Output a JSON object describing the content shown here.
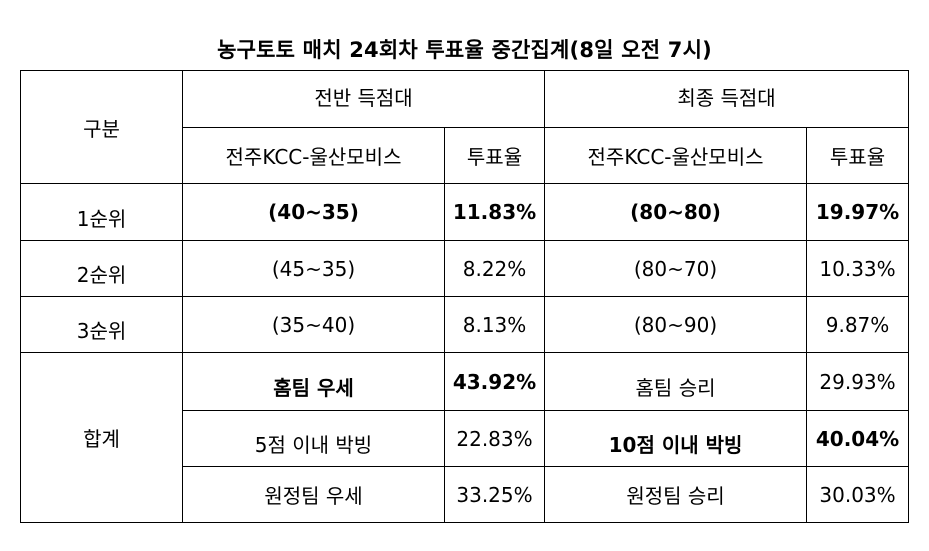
{
  "title": "농구토토 매치 24회차 투표율 중간집계(8일 오전 7시)",
  "header": {
    "category": "구분",
    "half_group": "전반 득점대",
    "final_group": "최종 득점대",
    "half_match": "전주KCC-울산모비스",
    "half_rate": "투표율",
    "final_match": "전주KCC-울산모비스",
    "final_rate": "투표율"
  },
  "ranks": [
    {
      "label": "1순위",
      "half_range": "(40~35)",
      "half_rate": "11.83%",
      "final_range": "(80~80)",
      "final_rate": "19.97%"
    },
    {
      "label": "2순위",
      "half_range": "(45~35)",
      "half_rate": "8.22%",
      "final_range": "(80~70)",
      "final_rate": "10.33%"
    },
    {
      "label": "3순위",
      "half_range": "(35~40)",
      "half_rate": "8.13%",
      "final_range": "(80~90)",
      "final_rate": "9.87%"
    }
  ],
  "total": {
    "label": "합계",
    "rows": [
      {
        "half_outcome": "홈팀 우세",
        "half_rate": "43.92%",
        "final_outcome": "홈팀 승리",
        "final_rate": "29.93%"
      },
      {
        "half_outcome": "5점 이내 박빙",
        "half_rate": "22.83%",
        "final_outcome": "10점 이내 박빙",
        "final_rate": "40.04%"
      },
      {
        "half_outcome": "원정팀 우세",
        "half_rate": "33.25%",
        "final_outcome": "원정팀 승리",
        "final_rate": "30.03%"
      }
    ]
  }
}
